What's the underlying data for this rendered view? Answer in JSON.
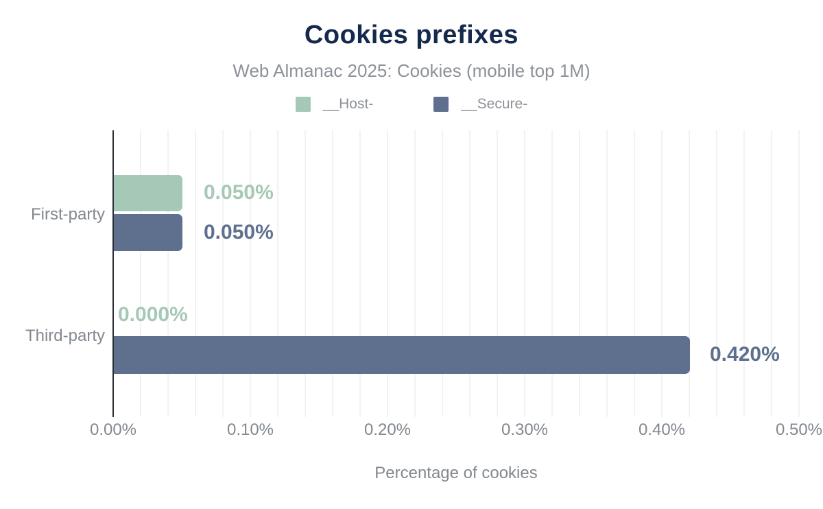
{
  "header": {
    "title": "Cookies prefixes",
    "subtitle": "Web Almanac 2025: Cookies (mobile top 1M)"
  },
  "colors": {
    "title": "#15294d",
    "subtitle_gray": "#8d9199",
    "axis_text_gray": "#82888f",
    "grid": "#f2f2f3",
    "axis_line": "#2a2e35",
    "host_green": "#a6c8b6",
    "secure_blue": "#5e708e"
  },
  "chart_data": {
    "type": "bar",
    "orientation": "horizontal",
    "title": "Cookies prefixes",
    "subtitle": "Web Almanac 2025: Cookies (mobile top 1M)",
    "categories": [
      "First-party",
      "Third-party"
    ],
    "series": [
      {
        "name": "__Host-",
        "color": "#a6c8b6",
        "values": [
          0.05,
          0.0
        ],
        "labels": [
          "0.050%",
          "0.000%"
        ]
      },
      {
        "name": "__Secure-",
        "color": "#5e708e",
        "values": [
          0.05,
          0.42
        ],
        "labels": [
          "0.050%",
          "0.420%"
        ]
      }
    ],
    "xlabel": "Percentage of cookies",
    "ylabel": "",
    "xlim": [
      0,
      0.5
    ],
    "x_ticks": [
      "0.00%",
      "0.10%",
      "0.20%",
      "0.30%",
      "0.40%",
      "0.50%"
    ],
    "x_tick_values": [
      0.0,
      0.1,
      0.2,
      0.3,
      0.4,
      0.5
    ],
    "grid": true,
    "grid_interval": 0.02,
    "legend_position": "top"
  }
}
